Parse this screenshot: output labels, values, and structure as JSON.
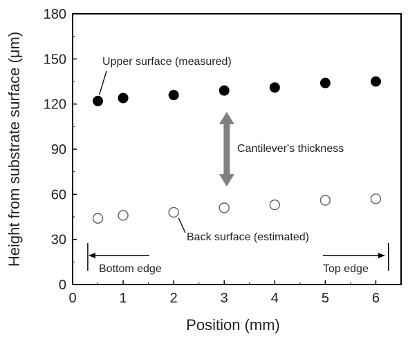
{
  "chart_data": {
    "type": "scatter",
    "xlabel": "Position (mm)",
    "ylabel": "Height from substrate surface (μm)",
    "xlim": [
      0,
      6.5
    ],
    "ylim": [
      0,
      180
    ],
    "xticks": [
      0,
      1,
      2,
      3,
      4,
      5,
      6
    ],
    "yticks": [
      0,
      30,
      60,
      90,
      120,
      150,
      180
    ],
    "grid": false,
    "series": [
      {
        "name": "Upper surface (measured)",
        "marker": "filled-circle",
        "color": "#000000",
        "points": [
          {
            "x": 0.5,
            "y": 122
          },
          {
            "x": 1,
            "y": 124
          },
          {
            "x": 2,
            "y": 126
          },
          {
            "x": 3,
            "y": 129
          },
          {
            "x": 4,
            "y": 131
          },
          {
            "x": 5,
            "y": 134
          },
          {
            "x": 6,
            "y": 135
          }
        ]
      },
      {
        "name": "Back surface (estimated)",
        "marker": "open-circle",
        "color": "#000000",
        "points": [
          {
            "x": 0.5,
            "y": 44
          },
          {
            "x": 1,
            "y": 46
          },
          {
            "x": 2,
            "y": 48
          },
          {
            "x": 3,
            "y": 51
          },
          {
            "x": 4,
            "y": 53
          },
          {
            "x": 5,
            "y": 56
          },
          {
            "x": 6,
            "y": 57
          }
        ]
      }
    ],
    "annotations": {
      "thickness_label": "Cantilever's thickness",
      "thickness_arrow": {
        "x": 3.05,
        "y_from": 67,
        "y_to": 113,
        "color": "#808080"
      },
      "bottom_edge_label": "Bottom edge",
      "top_edge_label": "Top edge",
      "bottom_edge_x": 0.3,
      "top_edge_x": 6.25
    }
  }
}
